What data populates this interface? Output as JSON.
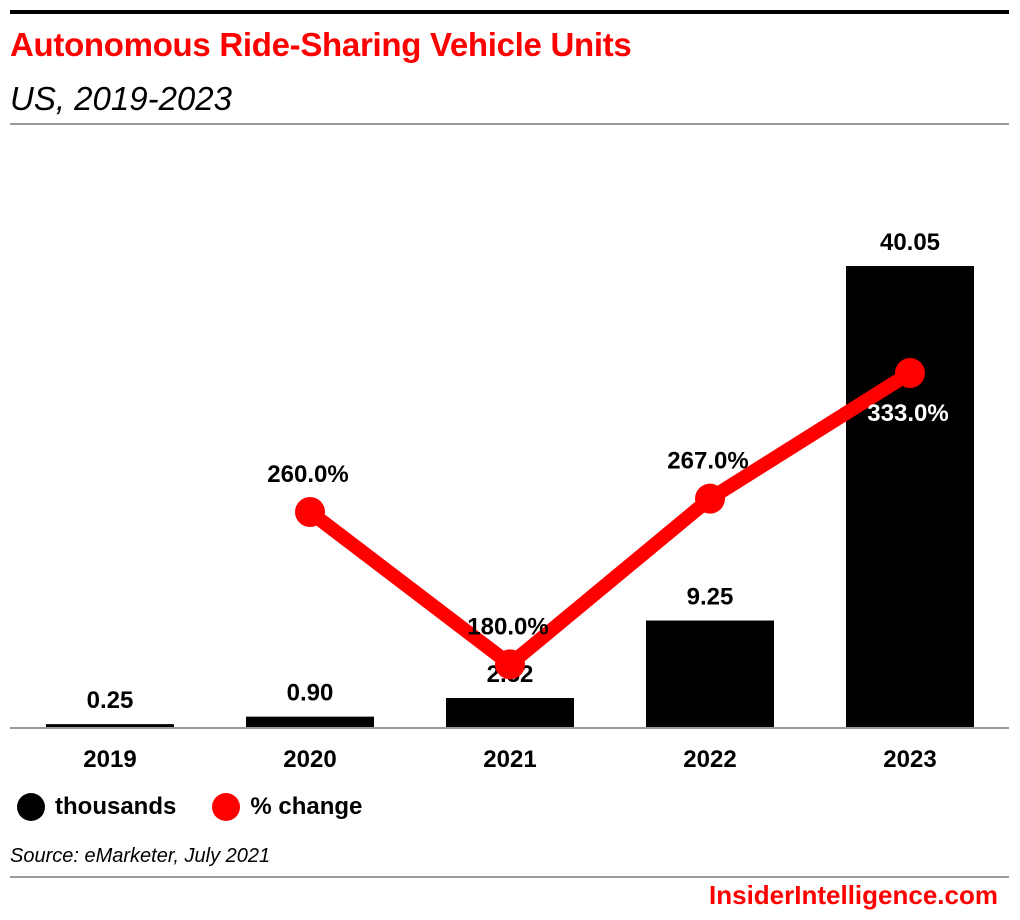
{
  "header": {
    "title": "Autonomous Ride-Sharing Vehicle Units",
    "subtitle": "US, 2019-2023"
  },
  "chart_data": {
    "type": "bar",
    "categories": [
      "2019",
      "2020",
      "2021",
      "2022",
      "2023"
    ],
    "series": [
      {
        "name": "thousands",
        "type": "bar",
        "values": [
          0.25,
          0.9,
          2.52,
          9.25,
          40.05
        ],
        "labels": [
          "0.25",
          "0.90",
          "2.52",
          "9.25",
          "40.05"
        ],
        "color": "#000000"
      },
      {
        "name": "% change",
        "type": "line",
        "values": [
          null,
          260.0,
          180.0,
          267.0,
          333.0
        ],
        "labels": [
          "",
          "260.0%",
          "180.0%",
          "267.0%",
          "333.0%"
        ],
        "color": "#ff0000"
      }
    ],
    "grid": false,
    "legend_placement": "bottom-left"
  },
  "legend": {
    "items": [
      {
        "label": "thousands",
        "color": "#000000"
      },
      {
        "label": "% change",
        "color": "#ff0000"
      }
    ]
  },
  "footer": {
    "source": "Source: eMarketer, July 2021",
    "brand": "InsiderIntelligence.com"
  }
}
